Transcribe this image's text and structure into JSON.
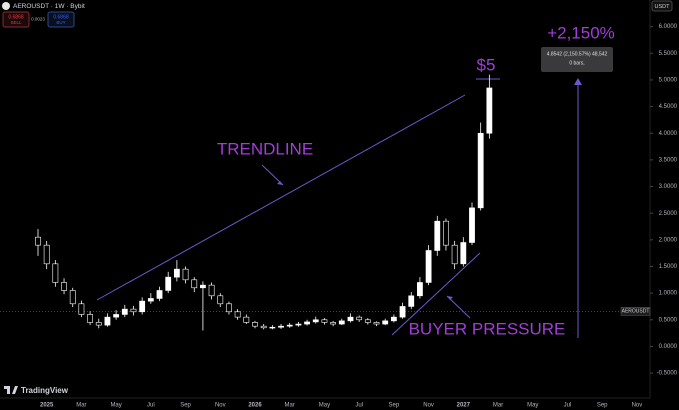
{
  "header": {
    "symbol": "AEROUSDT · 1W · Bybit",
    "sell_price": "0.6868",
    "sell_label": "SELL",
    "spread": "0.0023",
    "buy_price": "0.6868",
    "buy_label": "BUY",
    "currency": "USDT",
    "branding": "TradingView"
  },
  "chart_data": {
    "type": "candlestick",
    "categories": [
      null,
      "2025",
      null,
      null,
      null,
      "Mar",
      null,
      null,
      null,
      "May",
      null,
      null,
      null,
      "Jul",
      null,
      null,
      null,
      "Sep",
      null,
      null,
      null,
      "Nov",
      null,
      null,
      null,
      "2026",
      null,
      null,
      null,
      "Mar",
      null,
      null,
      null,
      "May",
      null,
      null,
      null,
      "Jul",
      null,
      null,
      null,
      "Sep",
      null,
      null,
      null,
      "Nov",
      null,
      null,
      null,
      "2027",
      null,
      null,
      null,
      "Mar",
      null,
      null,
      null,
      "May",
      null,
      null,
      null,
      "Jul",
      null,
      null,
      null,
      "Sep",
      null,
      null,
      null,
      "Nov"
    ],
    "open": [
      2.05,
      1.9,
      1.55,
      1.2,
      1.05,
      0.8,
      0.6,
      0.45,
      0.4,
      0.55,
      0.6,
      0.7,
      0.65,
      0.85,
      0.9,
      1.05,
      1.3,
      1.45,
      1.25,
      1.1,
      1.15,
      0.95,
      0.8,
      0.65,
      0.55,
      0.45,
      0.38,
      0.35,
      0.36,
      0.38,
      0.4,
      0.42,
      0.46,
      0.5,
      0.45,
      0.42,
      0.48,
      0.55,
      0.5,
      0.45,
      0.42,
      0.48,
      0.55,
      0.75,
      0.95,
      1.2,
      1.8,
      2.35,
      1.9,
      1.55,
      1.95,
      2.6,
      4.0,
      null,
      null,
      null,
      null,
      null,
      null,
      null,
      null,
      null,
      null,
      null,
      null,
      null,
      null,
      null,
      null,
      null
    ],
    "high": [
      2.2,
      1.98,
      1.62,
      1.28,
      1.1,
      0.86,
      0.66,
      0.52,
      0.62,
      0.68,
      0.78,
      0.76,
      0.92,
      1.0,
      1.12,
      1.4,
      1.62,
      1.5,
      1.3,
      1.22,
      1.2,
      1.0,
      0.84,
      0.7,
      0.6,
      0.48,
      0.42,
      0.4,
      0.42,
      0.44,
      0.46,
      0.5,
      0.56,
      0.53,
      0.48,
      0.52,
      0.62,
      0.58,
      0.53,
      0.47,
      0.52,
      0.6,
      0.82,
      1.02,
      1.3,
      1.9,
      2.45,
      2.4,
      1.98,
      2.05,
      2.7,
      4.2,
      5.1,
      null,
      null,
      null,
      null,
      null,
      null,
      null,
      null,
      null,
      null,
      null,
      null,
      null,
      null,
      null,
      null,
      null
    ],
    "low": [
      1.7,
      1.45,
      1.12,
      0.98,
      0.74,
      0.55,
      0.4,
      0.34,
      0.37,
      0.5,
      0.55,
      0.58,
      0.6,
      0.8,
      0.85,
      1.0,
      1.22,
      1.18,
      1.02,
      0.3,
      0.88,
      0.74,
      0.6,
      0.5,
      0.42,
      0.34,
      0.32,
      0.32,
      0.33,
      0.35,
      0.37,
      0.39,
      0.43,
      0.41,
      0.38,
      0.4,
      0.45,
      0.46,
      0.41,
      0.38,
      0.4,
      0.45,
      0.52,
      0.7,
      0.9,
      1.15,
      1.7,
      1.8,
      1.45,
      1.5,
      1.9,
      2.55,
      3.9,
      null,
      null,
      null,
      null,
      null,
      null,
      null,
      null,
      null,
      null,
      null,
      null,
      null,
      null,
      null,
      null,
      null
    ],
    "close": [
      1.9,
      1.55,
      1.2,
      1.05,
      0.8,
      0.6,
      0.45,
      0.4,
      0.55,
      0.6,
      0.7,
      0.65,
      0.85,
      0.9,
      1.05,
      1.3,
      1.45,
      1.25,
      1.1,
      1.15,
      0.95,
      0.8,
      0.65,
      0.55,
      0.45,
      0.38,
      0.35,
      0.36,
      0.38,
      0.4,
      0.42,
      0.46,
      0.5,
      0.45,
      0.42,
      0.48,
      0.55,
      0.5,
      0.45,
      0.42,
      0.48,
      0.55,
      0.75,
      0.95,
      1.2,
      1.8,
      2.35,
      1.9,
      1.55,
      1.95,
      2.6,
      4.0,
      4.85,
      null,
      null,
      null,
      null,
      null,
      null,
      null,
      null,
      null,
      null,
      null,
      null,
      null,
      null,
      null,
      null,
      null
    ],
    "up_color": "#ffffff",
    "down_color": "#000000",
    "ylim": [
      -0.93,
      6.5
    ],
    "yticks": [
      {
        "value": 6,
        "label": "6.0000"
      },
      {
        "value": 5.5,
        "label": "5.5000"
      },
      {
        "value": 5,
        "label": "5.0000"
      },
      {
        "value": 4.5,
        "label": "4.5000"
      },
      {
        "value": 4,
        "label": "4.0000"
      },
      {
        "value": 3.5,
        "label": "3.5000"
      },
      {
        "value": 3,
        "label": "3.0000"
      },
      {
        "value": 2.5,
        "label": "2.5000"
      },
      {
        "value": 2,
        "label": "2.0000"
      },
      {
        "value": 1.5,
        "label": "1.5000"
      },
      {
        "value": 1,
        "label": "1.0000"
      },
      {
        "value": 0.5,
        "label": "0.5000"
      },
      {
        "value": 0,
        "label": "0.0000"
      },
      {
        "value": -0.5,
        "label": "-0.5000"
      }
    ],
    "price_line": 0.66,
    "price_line_label": "AEROUSDT",
    "annotations": {
      "trendline": "TRENDLINE",
      "target": "$5",
      "gain": "+2,150%",
      "buyer": "BUYER PRESSURE",
      "measure_text": "4.8542 (2,150.57%) 48,542",
      "measure_bars": "0 bars,"
    }
  }
}
